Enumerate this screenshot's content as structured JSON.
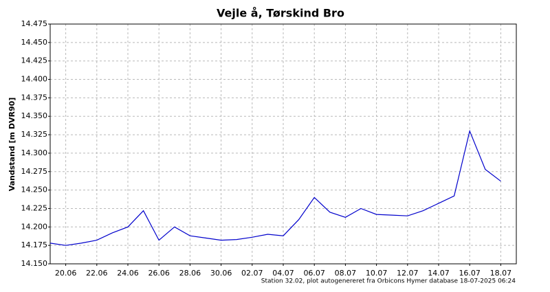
{
  "chart_data": {
    "type": "line",
    "title": "Vejle å, Tørskind Bro",
    "y_label": "Vandstand [m DVR90]",
    "footer": "Station 32.02, plot autogenereret fra Orbicons Hymer database 18-07-2025 06:24",
    "x": [
      "2025-06-19",
      "2025-06-20",
      "2025-06-21",
      "2025-06-22",
      "2025-06-23",
      "2025-06-24",
      "2025-06-25",
      "2025-06-26",
      "2025-06-27",
      "2025-06-28",
      "2025-06-29",
      "2025-06-30",
      "2025-07-01",
      "2025-07-02",
      "2025-07-03",
      "2025-07-04",
      "2025-07-05",
      "2025-07-06",
      "2025-07-07",
      "2025-07-08",
      "2025-07-09",
      "2025-07-10",
      "2025-07-11",
      "2025-07-12",
      "2025-07-13",
      "2025-07-14",
      "2025-07-15",
      "2025-07-16",
      "2025-07-17",
      "2025-07-18"
    ],
    "values": [
      14.178,
      14.175,
      14.178,
      14.182,
      14.192,
      14.2,
      14.222,
      14.182,
      14.2,
      14.188,
      14.185,
      14.182,
      14.183,
      14.186,
      14.19,
      14.188,
      14.21,
      14.24,
      14.22,
      14.213,
      14.225,
      14.217,
      14.216,
      14.215,
      14.222,
      14.232,
      14.242,
      14.33,
      14.278,
      14.262
    ],
    "color": "#0000cc",
    "xlim": [
      "2025-06-19",
      "2025-07-19"
    ],
    "xticks": [
      {
        "value": "2025-06-20",
        "label": "20.06"
      },
      {
        "value": "2025-06-22",
        "label": "22.06"
      },
      {
        "value": "2025-06-24",
        "label": "24.06"
      },
      {
        "value": "2025-06-26",
        "label": "26.06"
      },
      {
        "value": "2025-06-28",
        "label": "28.06"
      },
      {
        "value": "2025-06-30",
        "label": "30.06"
      },
      {
        "value": "2025-07-02",
        "label": "02.07"
      },
      {
        "value": "2025-07-04",
        "label": "04.07"
      },
      {
        "value": "2025-07-06",
        "label": "06.07"
      },
      {
        "value": "2025-07-08",
        "label": "08.07"
      },
      {
        "value": "2025-07-10",
        "label": "10.07"
      },
      {
        "value": "2025-07-12",
        "label": "12.07"
      },
      {
        "value": "2025-07-14",
        "label": "14.07"
      },
      {
        "value": "2025-07-16",
        "label": "16.07"
      },
      {
        "value": "2025-07-18",
        "label": "18.07"
      }
    ],
    "ylim": [
      14.15,
      14.475
    ],
    "yticks": [
      {
        "value": 14.15,
        "label": "14.150"
      },
      14.175,
      {
        "value": 14.2,
        "label": "14.200"
      },
      14.225,
      {
        "value": 14.25,
        "label": "14.250"
      },
      14.275,
      {
        "value": 14.3,
        "label": "14.300"
      },
      14.325,
      {
        "value": 14.35,
        "label": "14.350"
      },
      14.375,
      {
        "value": 14.4,
        "label": "14.400"
      },
      14.425,
      {
        "value": 14.45,
        "label": "14.450"
      },
      14.475
    ],
    "grid": true
  }
}
